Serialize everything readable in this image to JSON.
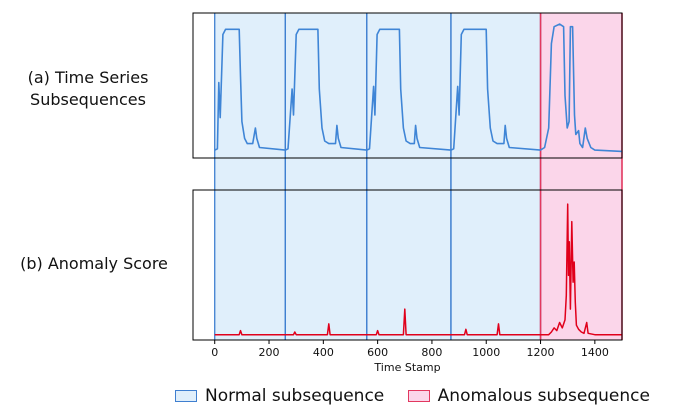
{
  "panel_labels": {
    "a_line1": "(a) Time Series",
    "a_line2": "Subsequences",
    "b": "(b) Anomaly Score"
  },
  "legend": {
    "normal": "Normal subsequence",
    "anomalous": "Anomalous subsequence"
  },
  "colors": {
    "series": "#3f85d6",
    "score": "#e0001b",
    "normal_fill": "#e0effb",
    "normal_edge": "#3f7fd0",
    "anomalous_fill": "#fbd6ea",
    "anomalous_edge": "#e2385f"
  },
  "chart_data": {
    "type": "line",
    "xlabel": "Time Stamp",
    "xlim": [
      -80,
      1500
    ],
    "xticks": [
      0,
      200,
      400,
      600,
      800,
      1000,
      1200,
      1400
    ],
    "shared_x": true,
    "panels": [
      {
        "name": "(a) Time Series Subsequences",
        "ylim": [
          0,
          1.07
        ],
        "series": [
          {
            "points": [
              [
                0,
                0.03
              ],
              [
                10,
                0.04
              ],
              [
                15,
                0.55
              ],
              [
                20,
                0.28
              ],
              [
                30,
                0.92
              ],
              [
                40,
                0.96
              ],
              [
                90,
                0.96
              ],
              [
                95,
                0.6
              ],
              [
                100,
                0.25
              ],
              [
                110,
                0.12
              ],
              [
                120,
                0.08
              ],
              [
                140,
                0.08
              ],
              [
                150,
                0.2
              ],
              [
                155,
                0.12
              ],
              [
                165,
                0.05
              ],
              [
                260,
                0.03
              ],
              [
                270,
                0.04
              ],
              [
                285,
                0.5
              ],
              [
                290,
                0.3
              ],
              [
                300,
                0.92
              ],
              [
                310,
                0.96
              ],
              [
                380,
                0.96
              ],
              [
                385,
                0.5
              ],
              [
                395,
                0.2
              ],
              [
                405,
                0.1
              ],
              [
                420,
                0.08
              ],
              [
                445,
                0.08
              ],
              [
                450,
                0.22
              ],
              [
                455,
                0.12
              ],
              [
                465,
                0.05
              ],
              [
                560,
                0.03
              ],
              [
                570,
                0.04
              ],
              [
                585,
                0.52
              ],
              [
                590,
                0.3
              ],
              [
                598,
                0.92
              ],
              [
                608,
                0.96
              ],
              [
                680,
                0.96
              ],
              [
                685,
                0.5
              ],
              [
                695,
                0.2
              ],
              [
                705,
                0.1
              ],
              [
                720,
                0.08
              ],
              [
                735,
                0.08
              ],
              [
                740,
                0.22
              ],
              [
                745,
                0.12
              ],
              [
                755,
                0.05
              ],
              [
                870,
                0.03
              ],
              [
                880,
                0.04
              ],
              [
                895,
                0.52
              ],
              [
                900,
                0.3
              ],
              [
                908,
                0.92
              ],
              [
                918,
                0.96
              ],
              [
                1000,
                0.96
              ],
              [
                1005,
                0.5
              ],
              [
                1015,
                0.2
              ],
              [
                1025,
                0.1
              ],
              [
                1040,
                0.08
              ],
              [
                1065,
                0.08
              ],
              [
                1070,
                0.22
              ],
              [
                1075,
                0.12
              ],
              [
                1085,
                0.05
              ],
              [
                1200,
                0.03
              ],
              [
                1215,
                0.05
              ],
              [
                1230,
                0.2
              ],
              [
                1240,
                0.85
              ],
              [
                1250,
                0.98
              ],
              [
                1270,
                1.0
              ],
              [
                1285,
                0.98
              ],
              [
                1290,
                0.45
              ],
              [
                1298,
                0.2
              ],
              [
                1305,
                0.25
              ],
              [
                1310,
                0.98
              ],
              [
                1318,
                0.98
              ],
              [
                1325,
                0.3
              ],
              [
                1330,
                0.15
              ],
              [
                1340,
                0.18
              ],
              [
                1345,
                0.08
              ],
              [
                1355,
                0.05
              ],
              [
                1365,
                0.2
              ],
              [
                1372,
                0.12
              ],
              [
                1385,
                0.05
              ],
              [
                1400,
                0.03
              ],
              [
                1500,
                0.02
              ]
            ]
          }
        ]
      },
      {
        "name": "(b) Anomaly Score",
        "ylim": [
          0,
          1.07
        ],
        "series": [
          {
            "points": [
              [
                0,
                0.01
              ],
              [
                90,
                0.01
              ],
              [
                95,
                0.04
              ],
              [
                100,
                0.01
              ],
              [
                290,
                0.01
              ],
              [
                295,
                0.03
              ],
              [
                300,
                0.01
              ],
              [
                415,
                0.01
              ],
              [
                420,
                0.09
              ],
              [
                425,
                0.01
              ],
              [
                595,
                0.01
              ],
              [
                600,
                0.04
              ],
              [
                605,
                0.01
              ],
              [
                695,
                0.01
              ],
              [
                700,
                0.2
              ],
              [
                705,
                0.01
              ],
              [
                920,
                0.01
              ],
              [
                925,
                0.05
              ],
              [
                930,
                0.01
              ],
              [
                1040,
                0.01
              ],
              [
                1045,
                0.09
              ],
              [
                1050,
                0.01
              ],
              [
                1200,
                0.01
              ],
              [
                1230,
                0.01
              ],
              [
                1240,
                0.03
              ],
              [
                1250,
                0.06
              ],
              [
                1260,
                0.04
              ],
              [
                1270,
                0.1
              ],
              [
                1280,
                0.06
              ],
              [
                1290,
                0.12
              ],
              [
                1295,
                0.3
              ],
              [
                1300,
                0.98
              ],
              [
                1303,
                0.45
              ],
              [
                1306,
                0.7
              ],
              [
                1310,
                0.2
              ],
              [
                1315,
                0.85
              ],
              [
                1320,
                0.4
              ],
              [
                1324,
                0.55
              ],
              [
                1328,
                0.25
              ],
              [
                1332,
                0.08
              ],
              [
                1340,
                0.05
              ],
              [
                1350,
                0.03
              ],
              [
                1360,
                0.02
              ],
              [
                1370,
                0.1
              ],
              [
                1375,
                0.02
              ],
              [
                1400,
                0.01
              ],
              [
                1500,
                0.01
              ]
            ]
          }
        ]
      }
    ],
    "regions": [
      {
        "type": "normal",
        "x": [
          0,
          260
        ]
      },
      {
        "type": "normal",
        "x": [
          260,
          560
        ]
      },
      {
        "type": "normal",
        "x": [
          560,
          870
        ]
      },
      {
        "type": "normal",
        "x": [
          870,
          1200
        ]
      },
      {
        "type": "anomalous",
        "x": [
          1200,
          1500
        ]
      }
    ],
    "legend_position": "bottom",
    "grid": false
  }
}
